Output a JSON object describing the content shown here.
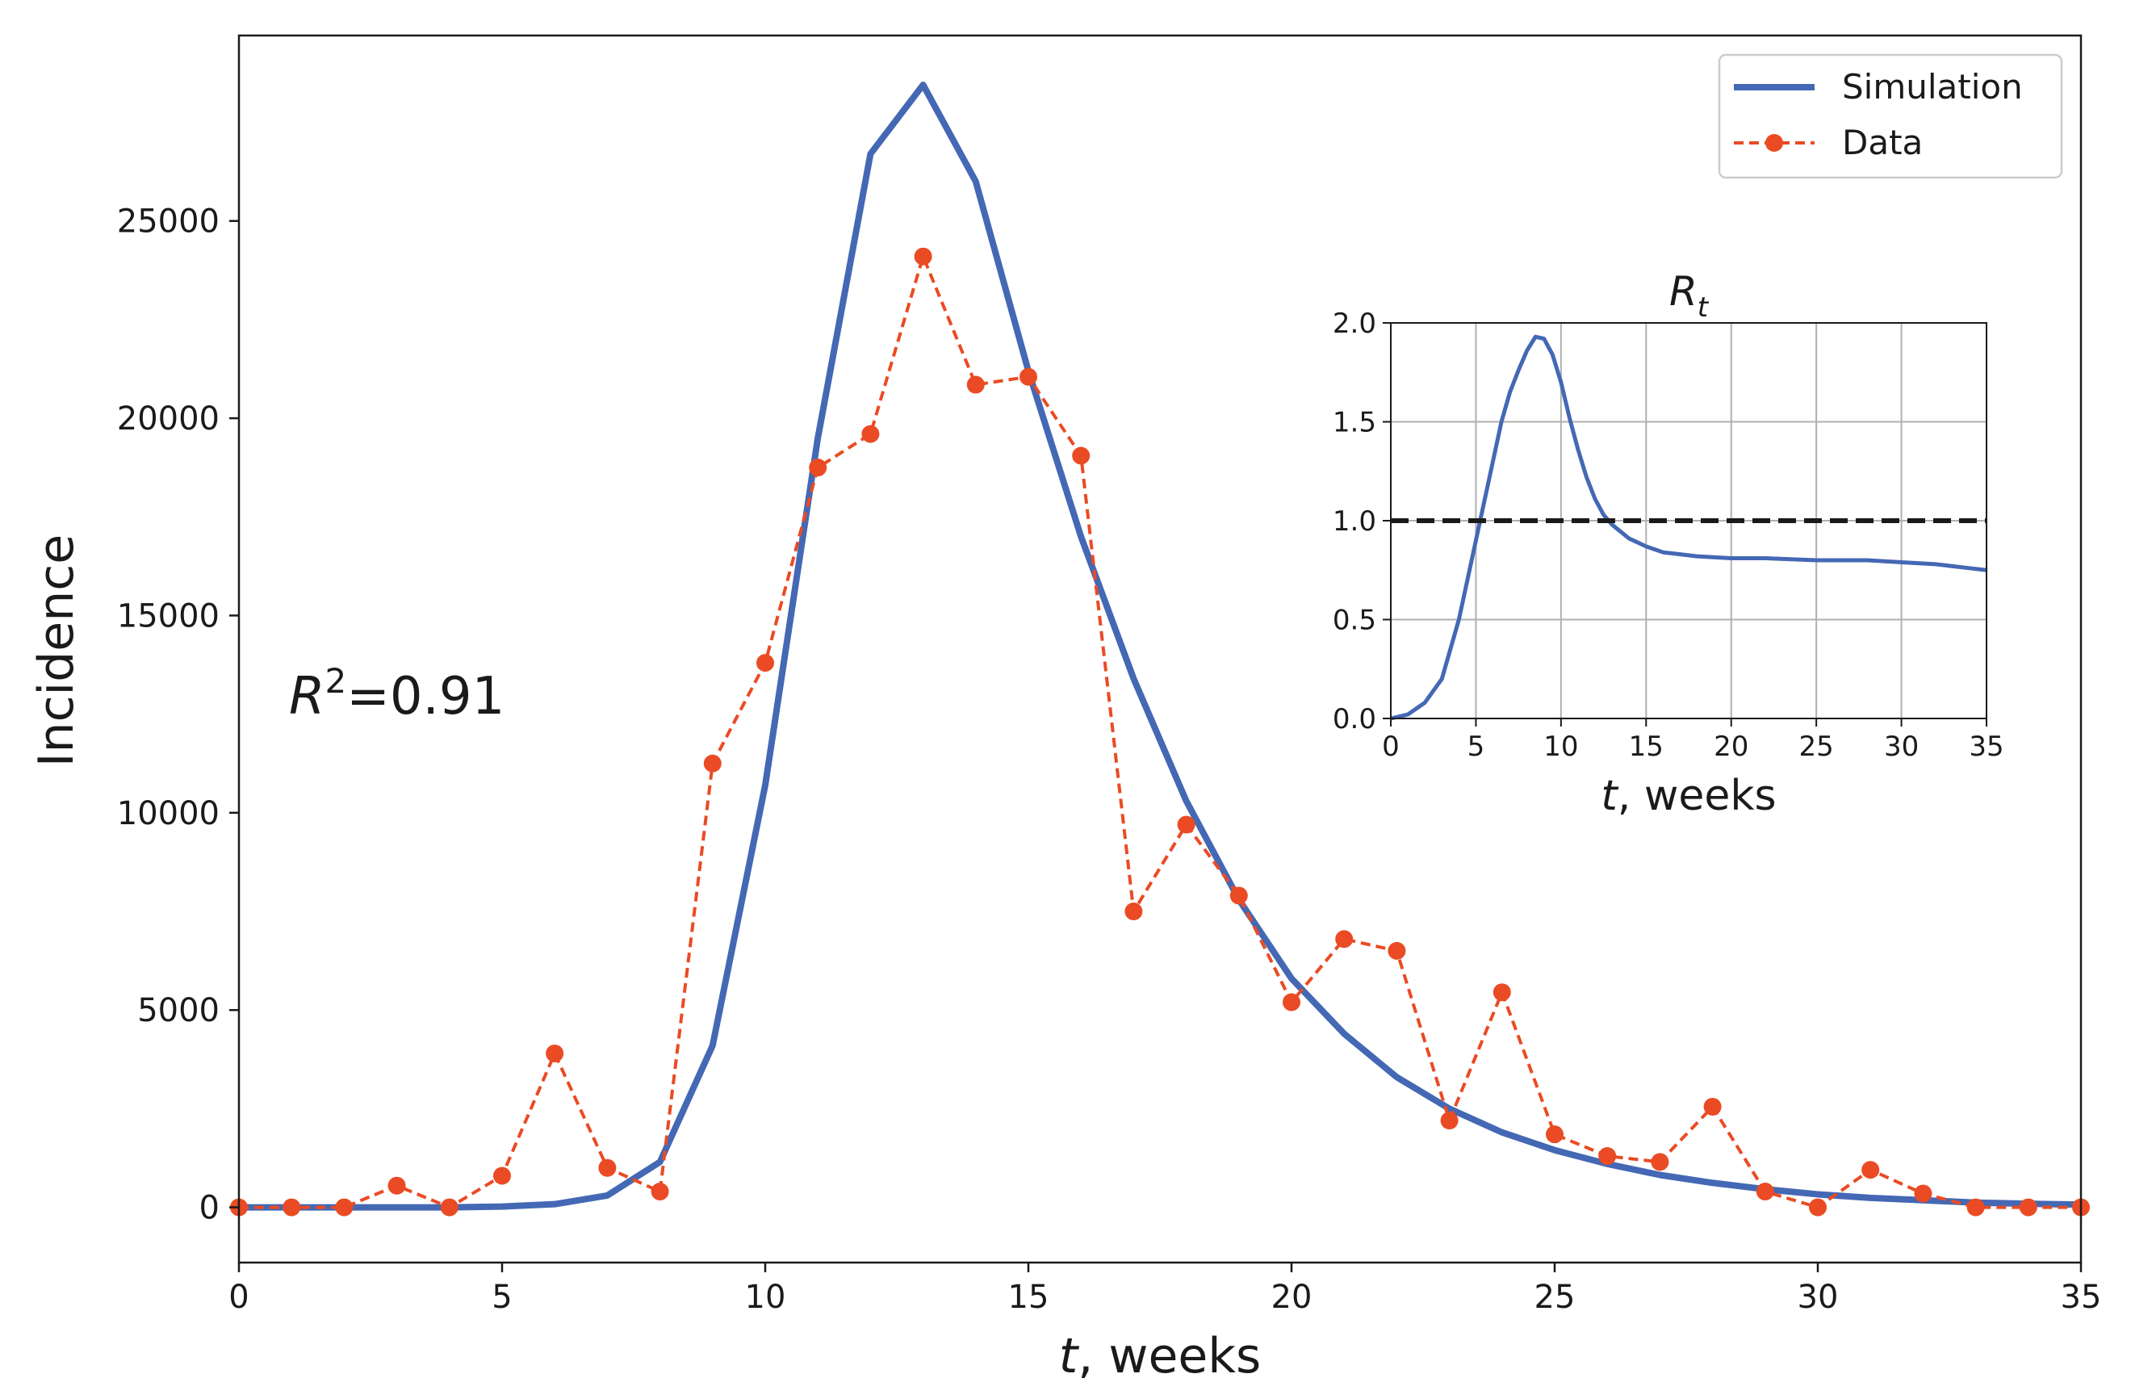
{
  "colors": {
    "simulation": "#4468b4",
    "data": "#ea4b24",
    "threshold": "#1a1a1a",
    "grid": "#b0b0b0",
    "axis": "#1a1a1a"
  },
  "chart_data": [
    {
      "type": "line",
      "id": "main",
      "xlabel": "t, weeks",
      "xlabel_var": "t",
      "xlabel_unit": ", weeks",
      "ylabel": "Incidence",
      "xlim": [
        0,
        35
      ],
      "ylim": [
        -1400,
        29700
      ],
      "xticks": [
        0,
        5,
        10,
        15,
        20,
        25,
        30,
        35
      ],
      "yticks": [
        0,
        5000,
        10000,
        15000,
        20000,
        25000
      ],
      "grid": false,
      "legend_position": "top-right",
      "annotation": {
        "text": "R²=0.91",
        "base": "R",
        "exp": "2",
        "rest": "=0.91"
      },
      "series": [
        {
          "name": "Simulation",
          "style": "solid",
          "x": [
            0,
            1,
            2,
            3,
            4,
            5,
            6,
            7,
            8,
            9,
            10,
            11,
            12,
            13,
            14,
            15,
            16,
            17,
            18,
            19,
            20,
            21,
            22,
            23,
            24,
            25,
            26,
            27,
            28,
            29,
            30,
            31,
            32,
            33,
            34,
            35
          ],
          "values": [
            0,
            0,
            0,
            0,
            0,
            20,
            80,
            300,
            1150,
            4100,
            10700,
            19500,
            26700,
            28450,
            26000,
            21200,
            17000,
            13400,
            10300,
            7800,
            5800,
            4400,
            3300,
            2500,
            1900,
            1450,
            1100,
            820,
            620,
            460,
            330,
            240,
            180,
            120,
            90,
            70
          ]
        },
        {
          "name": "Data",
          "style": "dashed-markers",
          "x": [
            0,
            1,
            2,
            3,
            4,
            5,
            6,
            7,
            8,
            9,
            10,
            11,
            12,
            13,
            14,
            15,
            16,
            17,
            18,
            19,
            20,
            21,
            22,
            23,
            24,
            25,
            26,
            27,
            28,
            29,
            30,
            31,
            32,
            33,
            34,
            35
          ],
          "values": [
            0,
            0,
            0,
            550,
            0,
            800,
            3900,
            1000,
            400,
            11250,
            13800,
            18750,
            19600,
            24100,
            20850,
            21050,
            19050,
            7500,
            9700,
            7900,
            5200,
            6800,
            6500,
            2200,
            5450,
            1850,
            1300,
            1150,
            2550,
            400,
            0,
            950,
            350,
            0,
            0,
            0
          ]
        }
      ]
    },
    {
      "type": "line",
      "id": "inset",
      "title": "R_t",
      "title_base": "R",
      "title_sub": "t",
      "xlabel": "t, weeks",
      "xlabel_var": "t",
      "xlabel_unit": ", weeks",
      "xlim": [
        0,
        35
      ],
      "ylim": [
        0,
        2.0
      ],
      "xticks": [
        0,
        5,
        10,
        15,
        20,
        25,
        30,
        35
      ],
      "yticks": [
        0.0,
        0.5,
        1.0,
        1.5,
        2.0
      ],
      "grid": true,
      "threshold": {
        "y": 1.0,
        "style": "dashed"
      },
      "series": [
        {
          "name": "R_t",
          "x": [
            0,
            1,
            2,
            3,
            4,
            5,
            5.5,
            6,
            6.5,
            7,
            7.5,
            8,
            8.5,
            9,
            9.5,
            10,
            10.5,
            11,
            11.5,
            12,
            12.5,
            13,
            14,
            15,
            16,
            17,
            18,
            20,
            22,
            25,
            28,
            30,
            32,
            33,
            34,
            35
          ],
          "values": [
            0,
            0.02,
            0.08,
            0.2,
            0.5,
            0.9,
            1.1,
            1.3,
            1.5,
            1.65,
            1.76,
            1.86,
            1.93,
            1.92,
            1.84,
            1.7,
            1.52,
            1.36,
            1.22,
            1.11,
            1.03,
            0.98,
            0.91,
            0.87,
            0.84,
            0.83,
            0.82,
            0.81,
            0.81,
            0.8,
            0.8,
            0.79,
            0.78,
            0.77,
            0.76,
            0.75
          ]
        }
      ]
    }
  ]
}
